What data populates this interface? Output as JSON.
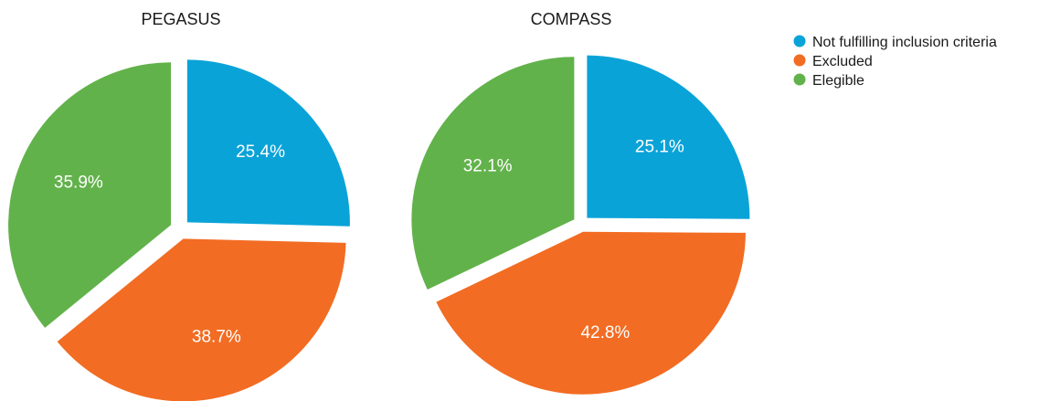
{
  "legend": {
    "items": [
      {
        "label": "Not fulfilling inclusion criteria",
        "color": "#0aa3d8"
      },
      {
        "label": "Excluded",
        "color": "#f26c23"
      },
      {
        "label": "Elegible",
        "color": "#62b24b"
      }
    ]
  },
  "chart_data": [
    {
      "type": "pie",
      "title": "PEGASUS",
      "categories": [
        "Not fulfilling inclusion criteria",
        "Excluded",
        "Elegible"
      ],
      "values": [
        25.4,
        38.7,
        35.9
      ],
      "labels": [
        "25.4%",
        "38.7%",
        "35.9%"
      ],
      "colors": [
        "#0aa3d8",
        "#f26c23",
        "#62b24b"
      ],
      "exploded": true,
      "legend_position": "top-right"
    },
    {
      "type": "pie",
      "title": "COMPASS",
      "categories": [
        "Not fulfilling inclusion criteria",
        "Excluded",
        "Elegible"
      ],
      "values": [
        25.1,
        42.8,
        32.1
      ],
      "labels": [
        "25.1%",
        "42.8%",
        "32.1%"
      ],
      "colors": [
        "#0aa3d8",
        "#f26c23",
        "#62b24b"
      ],
      "exploded": true,
      "legend_position": "top-right"
    }
  ]
}
